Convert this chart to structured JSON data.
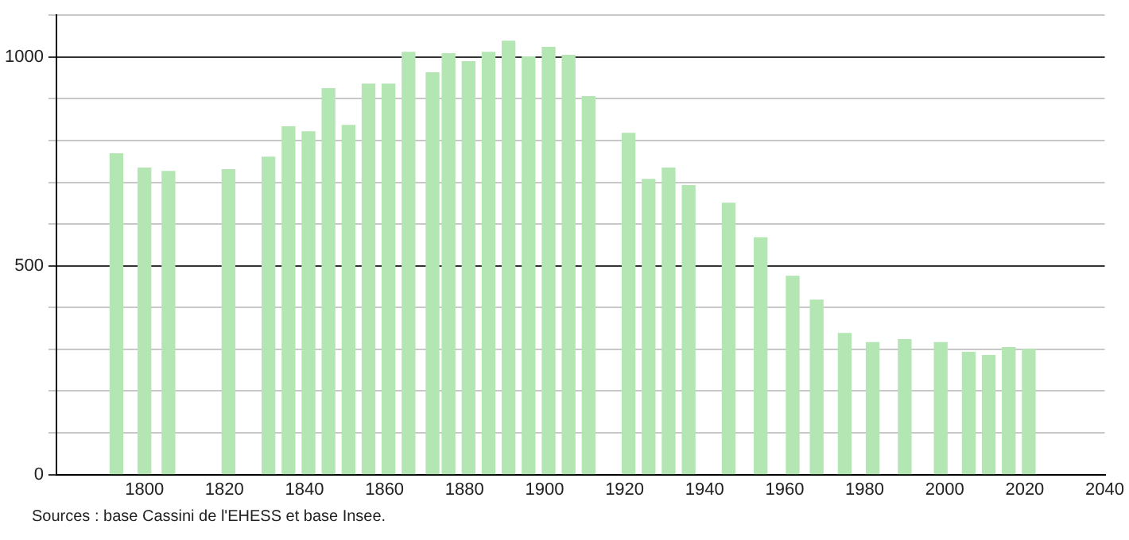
{
  "chart_data": {
    "type": "bar",
    "x": [
      1793,
      1800,
      1806,
      1821,
      1831,
      1836,
      1841,
      1846,
      1851,
      1856,
      1861,
      1866,
      1872,
      1876,
      1881,
      1886,
      1891,
      1896,
      1901,
      1906,
      1911,
      1921,
      1926,
      1931,
      1936,
      1946,
      1954,
      1962,
      1968,
      1975,
      1982,
      1990,
      1999,
      2006,
      2011,
      2016,
      2021
    ],
    "values": [
      768,
      734,
      726,
      730,
      760,
      833,
      821,
      924,
      836,
      935,
      935,
      1011,
      962,
      1008,
      989,
      1011,
      1038,
      1000,
      1023,
      1004,
      905,
      817,
      707,
      734,
      692,
      650,
      567,
      475,
      418,
      338,
      316,
      323,
      316,
      293,
      285,
      304,
      300
    ],
    "color": "#b3e6b3",
    "xlim": [
      1778,
      2040
    ],
    "xticks": [
      1800,
      1820,
      1840,
      1860,
      1880,
      1900,
      1920,
      1940,
      1960,
      1980,
      2000,
      2020,
      2040
    ],
    "ylim": [
      0,
      1100
    ],
    "yticks": [
      0,
      {
        "value": 100,
        "label": null
      },
      {
        "value": 200,
        "label": null
      },
      {
        "value": 300,
        "label": null
      },
      {
        "value": 400,
        "label": null
      },
      500,
      {
        "value": 600,
        "label": null
      },
      {
        "value": 700,
        "label": null
      },
      {
        "value": 800,
        "label": null
      },
      {
        "value": 900,
        "label": null
      },
      1000,
      {
        "value": 1100,
        "label": null
      }
    ],
    "grid": "y",
    "legend": false,
    "annotations": [
      "Sources : base Cassini de l'EHESS et base Insee."
    ]
  }
}
